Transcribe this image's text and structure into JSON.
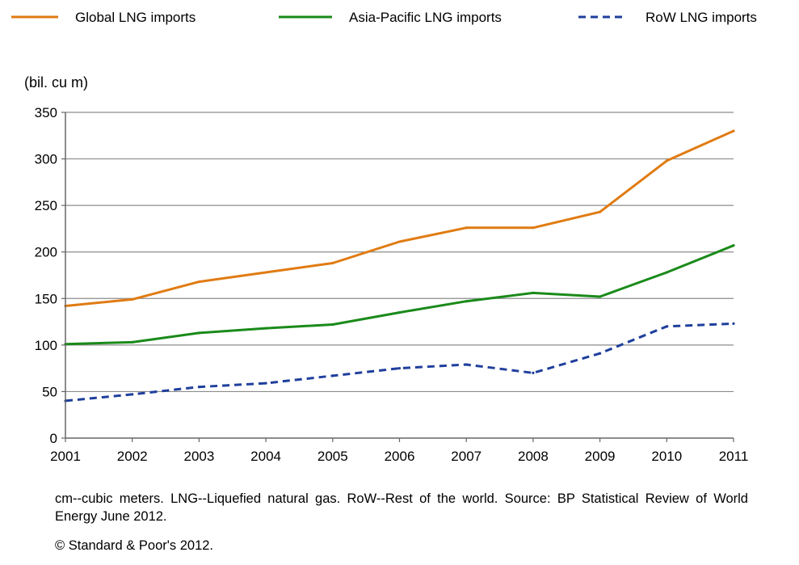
{
  "chart_data": {
    "type": "line",
    "title": "",
    "ylabel": "(bil. cu m)",
    "xlabel": "",
    "categories": [
      "2001",
      "2002",
      "2003",
      "2004",
      "2005",
      "2006",
      "2007",
      "2008",
      "2009",
      "2010",
      "2011"
    ],
    "ylim": [
      0,
      350
    ],
    "yticks": [
      0,
      50,
      100,
      150,
      200,
      250,
      300,
      350
    ],
    "grid": true,
    "legend_position": "top",
    "series": [
      {
        "name": "Global LNG imports",
        "color": "#e07b12",
        "dash": "solid",
        "values": [
          142,
          149,
          168,
          178,
          188,
          211,
          226,
          226,
          243,
          298,
          330
        ]
      },
      {
        "name": "Asia-Pacific LNG imports",
        "color": "#1a8a1a",
        "dash": "solid",
        "values": [
          101,
          103,
          113,
          118,
          122,
          135,
          147,
          156,
          152,
          178,
          207
        ]
      },
      {
        "name": "RoW LNG imports",
        "color": "#1f3f9c",
        "dash": "dashed",
        "values": [
          40,
          47,
          55,
          59,
          67,
          75,
          79,
          70,
          91,
          120,
          123
        ]
      }
    ]
  },
  "notes": {
    "footnote": "cm--cubic meters. LNG--Liquefied natural gas. RoW--Rest of the world. Source: BP Statistical Review of World Energy June 2012.",
    "copyright": "© Standard & Poor's 2012."
  }
}
